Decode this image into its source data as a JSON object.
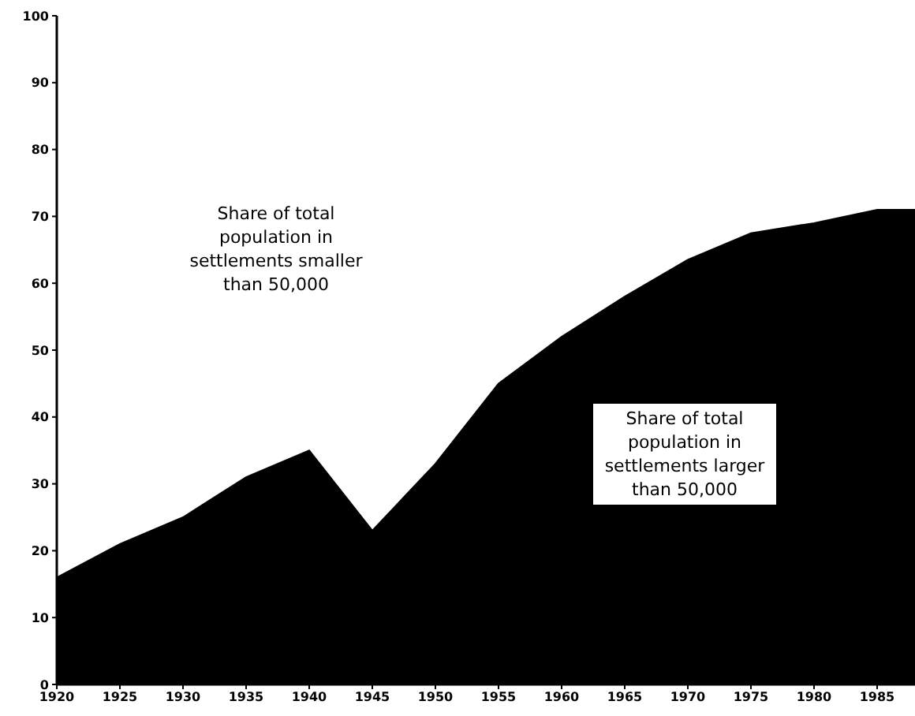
{
  "chart_data": {
    "type": "area",
    "x": [
      1920,
      1925,
      1930,
      1935,
      1940,
      1945,
      1950,
      1955,
      1960,
      1965,
      1970,
      1975,
      1980,
      1985,
      1988
    ],
    "series": [
      {
        "color": "#000000",
        "values": [
          16,
          21,
          25,
          31,
          35,
          23,
          33,
          45,
          52,
          58,
          63.5,
          67.5,
          69,
          71,
          71
        ]
      }
    ],
    "xlim": [
      1920,
      1988
    ],
    "xticks": [
      1920,
      1925,
      1930,
      1935,
      1940,
      1945,
      1950,
      1955,
      1960,
      1965,
      1970,
      1975,
      1980,
      1985
    ],
    "ylim": [
      0,
      100
    ],
    "yticks": [
      0,
      10,
      20,
      30,
      40,
      50,
      60,
      70,
      80,
      90,
      100
    ],
    "annotations": [
      "Share of total population in settlements smaller than 50,000",
      "Share of total population in settlements larger than 50,000"
    ],
    "grid": false,
    "legend": false
  }
}
